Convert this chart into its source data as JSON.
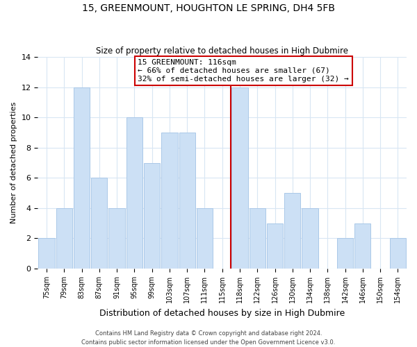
{
  "title": "15, GREENMOUNT, HOUGHTON LE SPRING, DH4 5FB",
  "subtitle": "Size of property relative to detached houses in High Dubmire",
  "xlabel": "Distribution of detached houses by size in High Dubmire",
  "ylabel": "Number of detached properties",
  "bar_labels": [
    "75sqm",
    "79sqm",
    "83sqm",
    "87sqm",
    "91sqm",
    "95sqm",
    "99sqm",
    "103sqm",
    "107sqm",
    "111sqm",
    "115sqm",
    "118sqm",
    "122sqm",
    "126sqm",
    "130sqm",
    "134sqm",
    "138sqm",
    "142sqm",
    "146sqm",
    "150sqm",
    "154sqm"
  ],
  "bar_values": [
    2,
    4,
    12,
    6,
    4,
    10,
    7,
    9,
    9,
    4,
    0,
    12,
    4,
    3,
    5,
    4,
    0,
    2,
    3,
    0,
    2
  ],
  "bar_color": "#cce0f5",
  "bar_edge_color": "#aac8e8",
  "vline_x": 10.5,
  "vline_color": "#cc0000",
  "annotation_title": "15 GREENMOUNT: 116sqm",
  "annotation_line1": "← 66% of detached houses are smaller (67)",
  "annotation_line2": "32% of semi-detached houses are larger (32) →",
  "annotation_box_color": "#ffffff",
  "annotation_box_edge": "#cc0000",
  "ylim": [
    0,
    14
  ],
  "yticks": [
    0,
    2,
    4,
    6,
    8,
    10,
    12,
    14
  ],
  "footnote1": "Contains HM Land Registry data © Crown copyright and database right 2024.",
  "footnote2": "Contains public sector information licensed under the Open Government Licence v3.0.",
  "background_color": "#ffffff",
  "grid_color": "#d8e6f3",
  "title_fontsize": 10,
  "subtitle_fontsize": 8.5,
  "annotation_fontsize": 8
}
